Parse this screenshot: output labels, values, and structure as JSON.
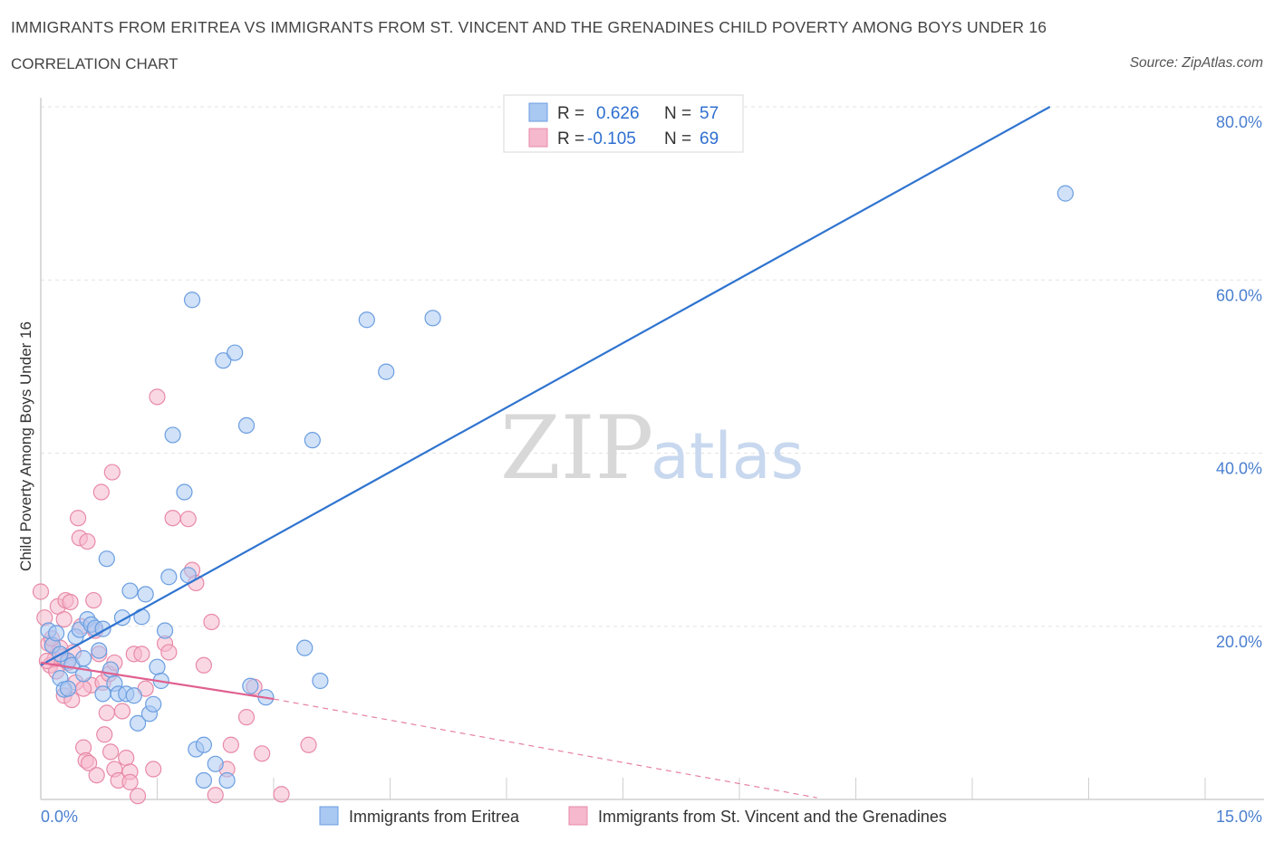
{
  "title": "IMMIGRANTS FROM ERITREA VS IMMIGRANTS FROM ST. VINCENT AND THE GRENADINES CHILD POVERTY AMONG BOYS UNDER 16",
  "subtitle": "CORRELATION CHART",
  "source": "Source: ZipAtlas.com",
  "watermark": {
    "zip": "ZIP",
    "atlas": "atlas"
  },
  "colors": {
    "blue_fill": "#a9c8f2",
    "blue_stroke": "#6b9ee0",
    "blue_line": "#2f74d0",
    "pink_fill": "#f5b8cc",
    "pink_stroke": "#e88aa8",
    "pink_line": "#e0608f",
    "grid": "#e3e3e3",
    "tick_text": "#4a7fd0"
  },
  "legend": {
    "r_label": "R =",
    "n_label": "N =",
    "blue": {
      "r": "0.626",
      "n": "57"
    },
    "pink": {
      "r": "-0.105",
      "n": "69"
    }
  },
  "chart_data": {
    "type": "scatter",
    "title": "IMMIGRANTS FROM ERITREA VS IMMIGRANTS FROM ST. VINCENT AND THE GRENADINES CHILD POVERTY AMONG BOYS UNDER 16",
    "xlabel": "",
    "ylabel": "Child Poverty Among Boys Under 16",
    "xlim": [
      0,
      15
    ],
    "ylim": [
      0,
      80
    ],
    "x_tick_labels": [
      "0.0%",
      "15.0%"
    ],
    "y_ticks": [
      20,
      40,
      60,
      80
    ],
    "y_tick_labels": [
      "20.0%",
      "40.0%",
      "60.0%",
      "80.0%"
    ],
    "series": [
      {
        "name": "Immigrants from Eritrea",
        "color": "blue",
        "trend": {
          "x0": 0.0,
          "y0": 15.5,
          "x1": 13.0,
          "y1": 80.0,
          "dashed_to": null
        },
        "points": [
          [
            0.1,
            19.5
          ],
          [
            0.15,
            17.8
          ],
          [
            0.2,
            19.2
          ],
          [
            0.25,
            14.0
          ],
          [
            0.3,
            12.7
          ],
          [
            0.35,
            16.0
          ],
          [
            0.4,
            15.5
          ],
          [
            0.45,
            18.8
          ],
          [
            0.5,
            19.6
          ],
          [
            0.55,
            14.5
          ],
          [
            0.6,
            20.8
          ],
          [
            0.65,
            20.2
          ],
          [
            0.7,
            19.8
          ],
          [
            0.75,
            17.2
          ],
          [
            0.8,
            12.2
          ],
          [
            0.85,
            27.8
          ],
          [
            0.9,
            15.0
          ],
          [
            0.95,
            13.4
          ],
          [
            1.0,
            12.2
          ],
          [
            1.05,
            21.0
          ],
          [
            1.1,
            12.2
          ],
          [
            1.15,
            24.1
          ],
          [
            1.2,
            12.0
          ],
          [
            1.25,
            8.8
          ],
          [
            1.3,
            21.1
          ],
          [
            1.35,
            23.7
          ],
          [
            1.4,
            9.9
          ],
          [
            1.45,
            11.0
          ],
          [
            1.5,
            15.3
          ],
          [
            1.55,
            13.7
          ],
          [
            1.6,
            19.5
          ],
          [
            1.65,
            25.7
          ],
          [
            1.7,
            42.1
          ],
          [
            1.85,
            35.5
          ],
          [
            1.9,
            25.9
          ],
          [
            1.95,
            57.7
          ],
          [
            2.0,
            5.8
          ],
          [
            2.1,
            6.3
          ],
          [
            2.25,
            4.1
          ],
          [
            2.35,
            50.7
          ],
          [
            2.5,
            51.6
          ],
          [
            2.1,
            2.2
          ],
          [
            2.4,
            2.2
          ],
          [
            2.65,
            43.2
          ],
          [
            2.7,
            13.1
          ],
          [
            2.9,
            11.8
          ],
          [
            3.5,
            41.5
          ],
          [
            3.4,
            17.5
          ],
          [
            3.6,
            13.7
          ],
          [
            0.25,
            16.8
          ],
          [
            0.55,
            16.3
          ],
          [
            0.8,
            19.7
          ],
          [
            4.2,
            55.4
          ],
          [
            4.45,
            49.4
          ],
          [
            5.05,
            55.6
          ],
          [
            13.2,
            70.0
          ],
          [
            0.35,
            12.8
          ]
        ]
      },
      {
        "name": "Immigrants from St. Vincent and the Grenadines",
        "color": "pink",
        "trend": {
          "x0": 0.0,
          "y0": 15.8,
          "x1": 3.0,
          "y1": 11.6,
          "dashed_to": [
            10.0,
            0.2
          ]
        },
        "points": [
          [
            0.0,
            24.0
          ],
          [
            0.05,
            21.0
          ],
          [
            0.1,
            18.0
          ],
          [
            0.12,
            15.5
          ],
          [
            0.15,
            17.8
          ],
          [
            0.18,
            16.2
          ],
          [
            0.2,
            14.8
          ],
          [
            0.22,
            22.3
          ],
          [
            0.25,
            17.5
          ],
          [
            0.28,
            16.5
          ],
          [
            0.3,
            12.0
          ],
          [
            0.32,
            23.0
          ],
          [
            0.35,
            15.8
          ],
          [
            0.38,
            22.8
          ],
          [
            0.4,
            11.5
          ],
          [
            0.42,
            17.0
          ],
          [
            0.45,
            13.5
          ],
          [
            0.48,
            32.5
          ],
          [
            0.5,
            30.2
          ],
          [
            0.52,
            20.0
          ],
          [
            0.55,
            6.0
          ],
          [
            0.58,
            4.5
          ],
          [
            0.6,
            29.8
          ],
          [
            0.62,
            4.2
          ],
          [
            0.65,
            13.2
          ],
          [
            0.68,
            23.0
          ],
          [
            0.7,
            19.5
          ],
          [
            0.72,
            2.8
          ],
          [
            0.75,
            16.8
          ],
          [
            0.78,
            35.5
          ],
          [
            0.8,
            13.5
          ],
          [
            0.82,
            7.5
          ],
          [
            0.85,
            10.0
          ],
          [
            0.88,
            14.5
          ],
          [
            0.9,
            5.5
          ],
          [
            0.92,
            37.8
          ],
          [
            0.95,
            3.5
          ],
          [
            1.0,
            2.2
          ],
          [
            1.05,
            10.2
          ],
          [
            1.1,
            4.8
          ],
          [
            1.15,
            3.2
          ],
          [
            1.2,
            16.8
          ],
          [
            1.25,
            0.4
          ],
          [
            1.3,
            16.8
          ],
          [
            1.35,
            12.8
          ],
          [
            1.45,
            3.5
          ],
          [
            1.5,
            46.5
          ],
          [
            1.6,
            18.0
          ],
          [
            1.65,
            17.0
          ],
          [
            1.7,
            32.5
          ],
          [
            1.9,
            32.4
          ],
          [
            1.95,
            26.5
          ],
          [
            2.0,
            25.0
          ],
          [
            2.1,
            15.5
          ],
          [
            2.2,
            20.5
          ],
          [
            2.25,
            0.5
          ],
          [
            2.4,
            3.5
          ],
          [
            2.45,
            6.3
          ],
          [
            2.65,
            9.5
          ],
          [
            2.75,
            13.0
          ],
          [
            2.85,
            5.3
          ],
          [
            3.1,
            0.6
          ],
          [
            3.45,
            6.3
          ],
          [
            0.08,
            16.0
          ],
          [
            0.14,
            18.6
          ],
          [
            0.3,
            20.8
          ],
          [
            0.55,
            12.8
          ],
          [
            0.95,
            15.8
          ],
          [
            1.15,
            2.0
          ]
        ]
      }
    ]
  },
  "bottom_legend": {
    "blue_label": "Immigrants from Eritrea",
    "pink_label": "Immigrants from St. Vincent and the Grenadines"
  }
}
